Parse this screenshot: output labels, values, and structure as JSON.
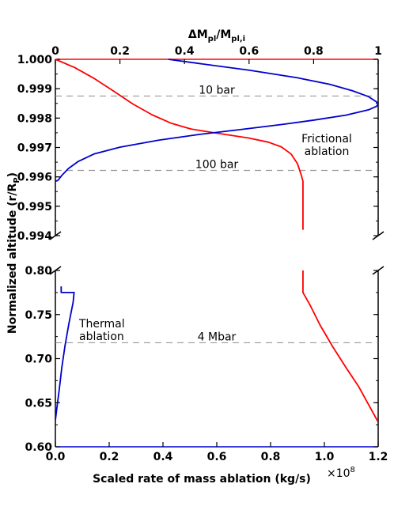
{
  "chart_data": {
    "type": "line",
    "top_axis": {
      "label_main": "ΔM",
      "label_sub1": "pl",
      "label_mid": "/M",
      "label_sub2": "pl,i",
      "ticks": [
        "0",
        "0.2",
        "0.4",
        "0.6",
        "0.8",
        "1"
      ],
      "range": [
        0,
        1
      ]
    },
    "bottom_axis": {
      "label": "Scaled rate of mass ablation (kg/s)",
      "ticks": [
        "0.0",
        "0.2",
        "0.4",
        "0.6",
        "0.8",
        "1.0",
        "1.2"
      ],
      "range": [
        0,
        1.2
      ],
      "multiplier_base": "×10",
      "multiplier_exp": "8"
    },
    "y_axis": {
      "label_main": "Normalized altitude (r/R",
      "label_sub": "P",
      "label_close": ")",
      "upper_panel": {
        "range": [
          0.994,
          1.0
        ],
        "ticks": [
          "1.000",
          "0.999",
          "0.998",
          "0.997",
          "0.996",
          "0.995",
          "0.994"
        ]
      },
      "lower_panel": {
        "range": [
          0.6,
          0.8
        ],
        "ticks": [
          "0.80",
          "0.75",
          "0.70",
          "0.65",
          "0.60"
        ]
      }
    },
    "pressure_levels": [
      {
        "label": "10 bar",
        "y": 0.99875,
        "panel": "upper"
      },
      {
        "label": "100 bar",
        "y": 0.99622,
        "panel": "upper"
      },
      {
        "label": "4 Mbar",
        "y": 0.718,
        "panel": "lower"
      }
    ],
    "annotations": {
      "frictional_line1": "Frictional",
      "frictional_line2": "ablation",
      "thermal_line1": "Thermal",
      "thermal_line2": "ablation"
    },
    "series": [
      {
        "color": "#ff0000",
        "axis": "top",
        "upper_panel": [
          [
            0.0,
            1.0
          ],
          [
            0.06,
            0.99972
          ],
          [
            0.12,
            0.99935
          ],
          [
            0.18,
            0.99892
          ],
          [
            0.24,
            0.99848
          ],
          [
            0.3,
            0.99811
          ],
          [
            0.36,
            0.99782
          ],
          [
            0.42,
            0.99763
          ],
          [
            0.48,
            0.99752
          ],
          [
            0.54,
            0.99742
          ],
          [
            0.6,
            0.99732
          ],
          [
            0.66,
            0.99718
          ],
          [
            0.7,
            0.99702
          ],
          [
            0.73,
            0.99678
          ],
          [
            0.75,
            0.99645
          ],
          [
            0.762,
            0.99605
          ],
          [
            0.767,
            0.99585
          ],
          [
            0.767,
            0.9942
          ]
        ],
        "lower_panel": [
          [
            0.767,
            0.8
          ],
          [
            0.767,
            0.775
          ],
          [
            0.79,
            0.76
          ],
          [
            0.82,
            0.738
          ],
          [
            0.86,
            0.713
          ],
          [
            0.9,
            0.69
          ],
          [
            0.94,
            0.668
          ],
          [
            0.97,
            0.648
          ],
          [
            1.0,
            0.628
          ]
        ]
      },
      {
        "color": "#0000cc",
        "axis": "top",
        "upper_panel": [
          [
            0.35,
            1.0
          ],
          [
            0.45,
            0.99985
          ],
          [
            0.6,
            0.99963
          ],
          [
            0.75,
            0.99937
          ],
          [
            0.85,
            0.99915
          ],
          [
            0.92,
            0.99893
          ],
          [
            0.97,
            0.99873
          ],
          [
            0.995,
            0.99855
          ],
          [
            1.0,
            0.99848
          ],
          [
            0.995,
            0.9984
          ],
          [
            0.97,
            0.99828
          ],
          [
            0.9,
            0.9981
          ],
          [
            0.8,
            0.99793
          ],
          [
            0.7,
            0.99778
          ],
          [
            0.58,
            0.99762
          ],
          [
            0.45,
            0.99745
          ],
          [
            0.32,
            0.99725
          ],
          [
            0.2,
            0.99701
          ],
          [
            0.12,
            0.99678
          ],
          [
            0.07,
            0.99652
          ],
          [
            0.04,
            0.99628
          ],
          [
            0.02,
            0.99605
          ],
          [
            0.008,
            0.99588
          ],
          [
            0.0,
            0.99585
          ]
        ],
        "lower_panel": [
          [
            0.0,
            0.63
          ],
          [
            0.005,
            0.645
          ],
          [
            0.012,
            0.665
          ],
          [
            0.02,
            0.69
          ],
          [
            0.03,
            0.715
          ],
          [
            0.042,
            0.74
          ],
          [
            0.055,
            0.764
          ],
          [
            0.058,
            0.775
          ],
          [
            0.018,
            0.775
          ],
          [
            0.018,
            0.782
          ]
        ]
      }
    ]
  }
}
